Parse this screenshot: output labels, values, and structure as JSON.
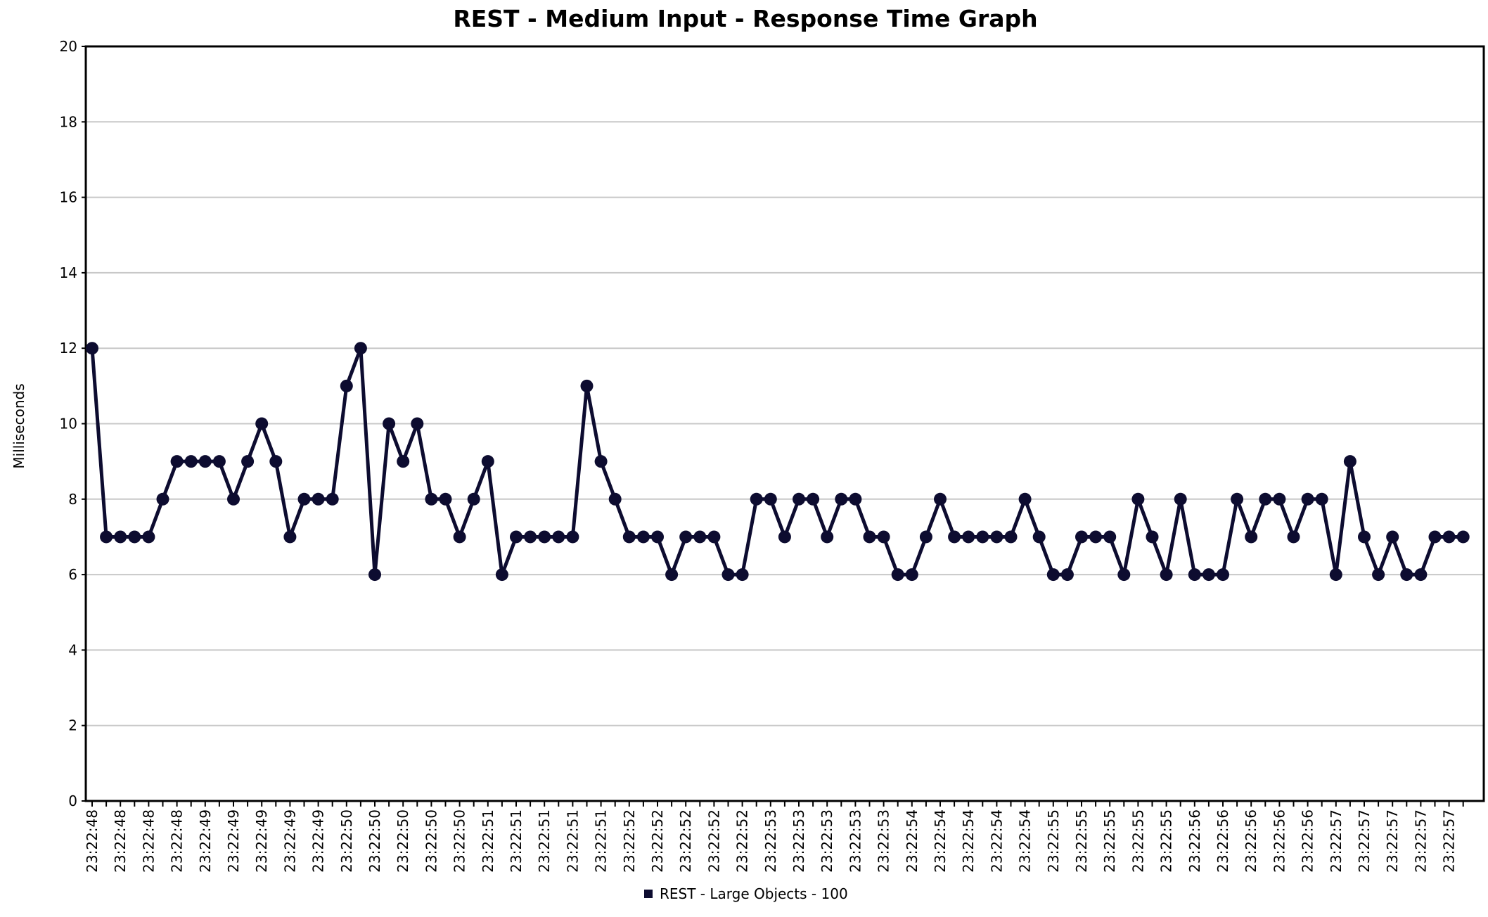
{
  "chart_data": {
    "type": "line",
    "title": "REST - Medium Input - Response Time Graph",
    "xlabel": "",
    "ylabel": "Milliseconds",
    "ylim": [
      0,
      20
    ],
    "yticks": [
      0,
      2,
      4,
      6,
      8,
      10,
      12,
      14,
      16,
      18,
      20
    ],
    "grid": true,
    "legend_position": "bottom",
    "x_tick_labels": [
      "23:22:48",
      "23:22:48",
      "23:22:48",
      "23:22:48",
      "23:22:49",
      "23:22:49",
      "23:22:49",
      "23:22:49",
      "23:22:49",
      "23:22:50",
      "23:22:50",
      "23:22:50",
      "23:22:50",
      "23:22:50",
      "23:22:51",
      "23:22:51",
      "23:22:51",
      "23:22:51",
      "23:22:51",
      "23:22:52",
      "23:22:52",
      "23:22:52",
      "23:22:52",
      "23:22:52",
      "23:22:53",
      "23:22:53",
      "23:22:53",
      "23:22:53",
      "23:22:53",
      "23:22:54",
      "23:22:54",
      "23:22:54",
      "23:22:54",
      "23:22:54",
      "23:22:55",
      "23:22:55",
      "23:22:55",
      "23:22:55",
      "23:22:55",
      "23:22:56",
      "23:22:56",
      "23:22:56",
      "23:22:56",
      "23:22:56",
      "23:22:57",
      "23:22:57",
      "23:22:57",
      "23:22:57",
      "23:22:57"
    ],
    "series": [
      {
        "name": "REST - Large Objects - 100",
        "color": "#0d0c30",
        "values": [
          12,
          7,
          7,
          7,
          7,
          8,
          9,
          9,
          9,
          9,
          8,
          9,
          10,
          9,
          7,
          8,
          8,
          8,
          11,
          12,
          6,
          10,
          9,
          10,
          8,
          8,
          7,
          8,
          9,
          6,
          7,
          7,
          7,
          7,
          7,
          11,
          9,
          8,
          7,
          7,
          7,
          6,
          7,
          7,
          7,
          6,
          6,
          8,
          8,
          7,
          8,
          8,
          7,
          8,
          8,
          7,
          7,
          6,
          6,
          7,
          8,
          7,
          7,
          7,
          7,
          7,
          8,
          7,
          6,
          6,
          7,
          7,
          7,
          6,
          8,
          7,
          6,
          8,
          6,
          6,
          6,
          8,
          7,
          8,
          8,
          7,
          8,
          8,
          6,
          9,
          7,
          6,
          7,
          6,
          6,
          7,
          7,
          7
        ]
      }
    ]
  }
}
